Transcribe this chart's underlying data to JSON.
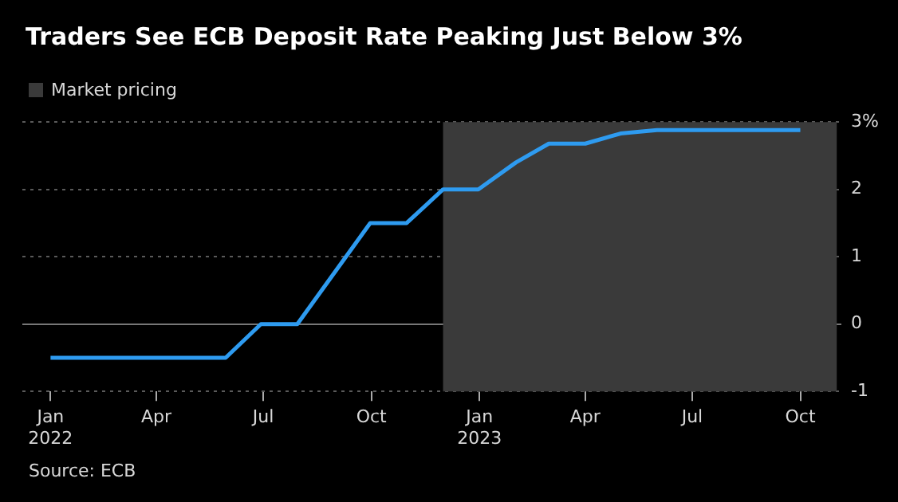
{
  "chart_data": {
    "type": "line",
    "title": "Traders See ECB Deposit Rate Peaking Just Below 3%",
    "x": [
      "2022-01-01",
      "2022-05-30",
      "2022-06-29",
      "2022-07-30",
      "2022-09-30",
      "2022-10-31",
      "2022-12-01",
      "2022-12-31",
      "2023-02-01",
      "2023-03-01",
      "2023-04-01",
      "2023-05-01",
      "2023-06-01",
      "2023-10-01"
    ],
    "series": [
      {
        "color": "#2e9bf0",
        "values": [
          -0.5,
          -0.5,
          0,
          0,
          1.5,
          1.5,
          2,
          2,
          2.4,
          2.68,
          2.68,
          2.83,
          2.88,
          2.88
        ]
      }
    ],
    "xlim": [
      "2021-12-08",
      "2023-11-05"
    ],
    "xticks": [
      {
        "value": "2022-01-01",
        "label": "Jan 2022"
      },
      {
        "value": "2022-04-01",
        "label": "Apr"
      },
      {
        "value": "2022-07-01",
        "label": "Jul"
      },
      {
        "value": "2022-10-01",
        "label": "Oct"
      },
      {
        "value": "2023-01-01",
        "label": "Jan 2023"
      },
      {
        "value": "2023-04-01",
        "label": "Apr"
      },
      {
        "value": "2023-07-01",
        "label": "Jul"
      },
      {
        "value": "2023-10-01",
        "label": "Oct"
      }
    ],
    "ylim": [
      -1,
      3
    ],
    "yticks": [
      -1,
      0,
      1,
      2,
      {
        "value": 3,
        "label": "3%"
      }
    ],
    "grid": "y",
    "bands": [
      {
        "axis": "x",
        "from": "2022-12-01",
        "to": "2023-11-01",
        "label": "Market pricing",
        "color": "#3a3a3a"
      }
    ],
    "legend": "top left",
    "line_style": "solid",
    "marker": "none",
    "annotations": [
      "Source: ECB"
    ]
  }
}
